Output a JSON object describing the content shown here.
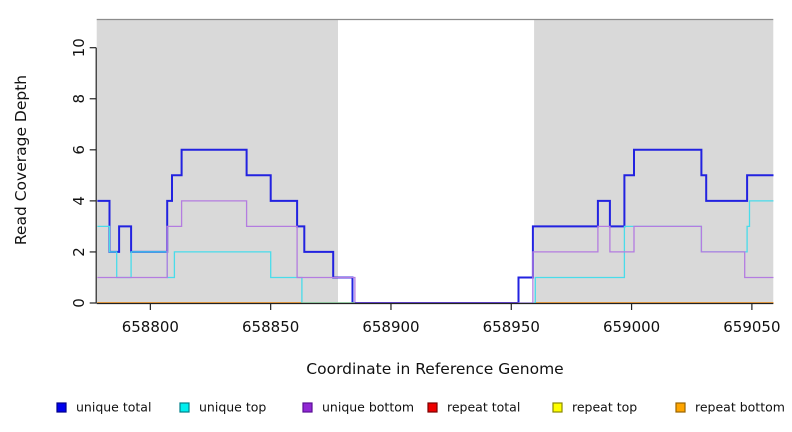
{
  "chart_data": {
    "type": "line",
    "subtype": "step-coverage",
    "title": "",
    "xlabel": "Coordinate in Reference Genome",
    "ylabel": "Read Coverage Depth",
    "xlim": [
      658777.7,
      659058.9
    ],
    "ylim": [
      0,
      11.08
    ],
    "x_ticks": [
      658800,
      658850,
      658900,
      658950,
      659000,
      659050
    ],
    "y_ticks": [
      0,
      2,
      4,
      6,
      8,
      10
    ],
    "grid": false,
    "background_color": "#ffffff",
    "shaded_region_color": "#d9d9d9",
    "shaded_region_border": "#8c8c8c",
    "shaded_regions": [
      {
        "x0": 658777.7,
        "x1": 658878.0
      },
      {
        "x0": 658959.5,
        "x1": 659058.9
      }
    ],
    "gap_region": {
      "x0": 658878.0,
      "x1": 658959.5
    },
    "series": [
      {
        "name": "unique total",
        "color": "#2222e0",
        "legend_color": "#0000ee",
        "legend_border": "#00008b",
        "width": 2,
        "segments": [
          [
            [
              658778,
              4
            ],
            [
              658783,
              2
            ],
            [
              658787,
              3
            ],
            [
              658792,
              2
            ],
            [
              658807,
              4
            ],
            [
              658809,
              5
            ],
            [
              658813,
              6
            ],
            [
              658840,
              5
            ],
            [
              658850,
              4
            ],
            [
              658861,
              3
            ],
            [
              658864,
              2
            ],
            [
              658876,
              1
            ],
            [
              658884,
              0
            ],
            [
              658953,
              1
            ],
            [
              658959,
              3
            ],
            [
              658986,
              4
            ],
            [
              658991,
              3
            ],
            [
              658997,
              5
            ],
            [
              659001,
              6
            ],
            [
              659029,
              5
            ],
            [
              659031,
              4
            ],
            [
              659048,
              5
            ],
            [
              659059,
              5
            ]
          ]
        ]
      },
      {
        "name": "unique top",
        "color": "#49dcea",
        "legend_color": "#00eeee",
        "legend_border": "#00808a",
        "width": 1.3,
        "segments": [
          [
            [
              658778,
              3
            ],
            [
              658783,
              2
            ],
            [
              658786,
              1
            ],
            [
              658792,
              2
            ],
            [
              658807,
              1
            ],
            [
              658810,
              2
            ],
            [
              658850,
              1
            ],
            [
              658863,
              0
            ],
            [
              658960,
              1
            ],
            [
              658997,
              3
            ],
            [
              659029,
              2
            ],
            [
              659048,
              3
            ],
            [
              659049,
              4
            ],
            [
              659059,
              4
            ]
          ]
        ]
      },
      {
        "name": "unique bottom",
        "color": "#b47ce0",
        "legend_color": "#9128d4",
        "legend_border": "#5a0f96",
        "width": 1.3,
        "segments": [
          [
            [
              658778,
              1
            ],
            [
              658807,
              3
            ],
            [
              658813,
              4
            ],
            [
              658840,
              3
            ],
            [
              658861,
              1
            ],
            [
              658885,
              0
            ],
            [
              658959,
              2
            ],
            [
              658986,
              3
            ],
            [
              658991,
              2
            ],
            [
              659001,
              3
            ],
            [
              659029,
              2
            ],
            [
              659047,
              1
            ],
            [
              659059,
              1
            ]
          ]
        ]
      },
      {
        "name": "repeat total",
        "color": "#dd2222",
        "legend_color": "#ee0000",
        "legend_border": "#7a0000",
        "width": 1.3,
        "segments": [
          [
            [
              658778,
              0
            ],
            [
              658863,
              0
            ]
          ],
          [
            [
              658960,
              0
            ],
            [
              659059,
              0
            ]
          ]
        ]
      },
      {
        "name": "repeat top",
        "color": "#ffee33",
        "legend_color": "#ffff00",
        "legend_border": "#8a8a00",
        "width": 1.3,
        "segments": [
          [
            [
              658778,
              0
            ],
            [
              658863,
              0
            ]
          ],
          [
            [
              658960,
              0
            ],
            [
              659059,
              0
            ]
          ]
        ]
      },
      {
        "name": "repeat bottom",
        "color": "#ff9d26",
        "legend_color": "#ffa500",
        "legend_border": "#9a6400",
        "width": 1.6,
        "segments": [
          [
            [
              658778,
              0
            ],
            [
              658863,
              0
            ]
          ],
          [
            [
              658960,
              0
            ],
            [
              659059,
              0
            ]
          ]
        ]
      }
    ],
    "overlap_segments": [
      {
        "name": "zero-line-cyan-yellow-blend",
        "color": "#9adc9e",
        "width": 1.5,
        "points": [
          [
            658863,
            0
          ],
          [
            658885,
            0
          ]
        ]
      },
      {
        "name": "zero-line-blue-purple-blend",
        "color": "#6644d8",
        "width": 2,
        "points": [
          [
            658885,
            0
          ],
          [
            658953,
            0
          ]
        ]
      }
    ],
    "legend": {
      "position": "bottom",
      "entries": [
        "unique total",
        "unique top",
        "unique bottom",
        "repeat total",
        "repeat top",
        "repeat bottom"
      ]
    }
  }
}
